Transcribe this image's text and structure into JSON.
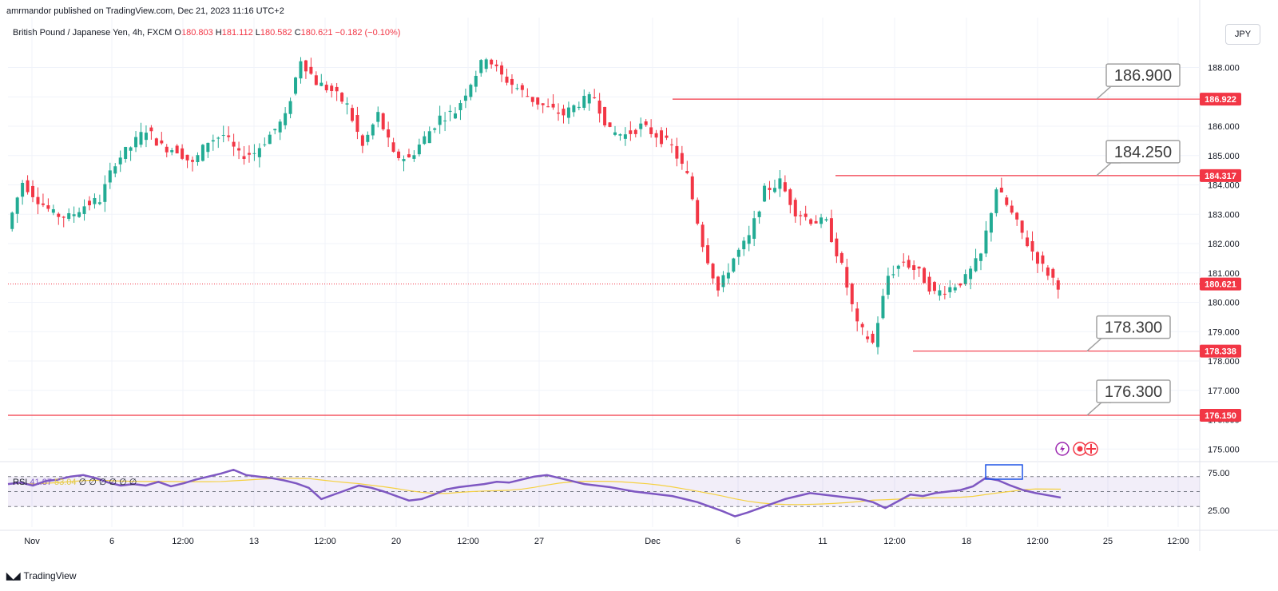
{
  "header": {
    "publish_line": "amrmandor published on TradingView.com, Dec 21, 2023 11:16 UTC+2",
    "symbol": "British Pound / Japanese Yen, 4h, FXCM",
    "open_label": "O",
    "open": "180.803",
    "high_label": "H",
    "high": "181.112",
    "low_label": "L",
    "low": "180.582",
    "close_label": "C",
    "close": "180.621",
    "change": "−0.182 (−0.10%)",
    "currency": "JPY"
  },
  "rsi_legend": {
    "name": "RSI",
    "value": "41.87",
    "ma": "53.04",
    "zeros": "∅ ∅ ∅ ∅ ∅ ∅"
  },
  "brand": {
    "name": "TradingView"
  },
  "colors": {
    "up": "#22ab94",
    "down": "#f23645",
    "rsi": "#7e57c2",
    "rsi_ma": "#f5d142",
    "line": "#f23645"
  },
  "chart_data": {
    "type": "candlestick",
    "price_axis": {
      "ticks": [
        "188.000",
        "187.000",
        "186.000",
        "185.000",
        "184.000",
        "183.000",
        "182.000",
        "181.000",
        "180.000",
        "179.000",
        "178.000",
        "177.000",
        "176.000",
        "175.000"
      ],
      "range": [
        174.6,
        188.9
      ]
    },
    "time_axis": {
      "labels": [
        "Nov",
        "6",
        "12:00",
        "13",
        "12:00",
        "20",
        "12:00",
        "27",
        "Dec",
        "6",
        "11",
        "12:00",
        "18",
        "12:00",
        "25",
        "12:00"
      ]
    },
    "horizontal_lines": [
      {
        "price": 186.922,
        "tag": "186.922",
        "annotation": "186.900"
      },
      {
        "price": 184.317,
        "tag": "184.317",
        "annotation": "184.250"
      },
      {
        "price": 178.338,
        "tag": "178.338",
        "annotation": "178.300"
      },
      {
        "price": 176.15,
        "tag": "176.150",
        "annotation": "176.300"
      }
    ],
    "last_price": {
      "price": 180.621,
      "tag": "180.621"
    },
    "close_path": [
      182.5,
      184.1,
      183.5,
      183.0,
      182.9,
      183.3,
      183.5,
      184.8,
      185.3,
      185.9,
      185.3,
      185.2,
      184.7,
      185.5,
      185.7,
      185.0,
      185.1,
      185.7,
      186.3,
      188.3,
      187.5,
      187.2,
      186.7,
      185.3,
      186.4,
      185.0,
      184.9,
      185.6,
      186.3,
      186.5,
      187.5,
      188.4,
      187.7,
      187.3,
      186.9,
      186.6,
      186.4,
      186.8,
      187.0,
      185.8,
      185.7,
      186.0,
      185.7,
      185.3,
      184.3,
      182.0,
      180.4,
      181.5,
      182.2,
      183.8,
      184.1,
      183.1,
      182.8,
      182.7,
      181.2,
      179.2,
      178.6,
      180.9,
      181.4,
      181.0,
      180.3,
      180.5,
      180.8,
      181.6,
      183.9,
      183.0,
      182.0,
      181.2,
      180.6
    ],
    "rsi": {
      "levels": [
        "75.00",
        "25.00"
      ],
      "overbought": 70,
      "middle": 50,
      "oversold": 30,
      "values": [
        60,
        62,
        58,
        64,
        66,
        70,
        72,
        68,
        62,
        58,
        60,
        58,
        63,
        57,
        61,
        66,
        70,
        74,
        79,
        72,
        70,
        68,
        65,
        61,
        55,
        40,
        46,
        52,
        58,
        55,
        50,
        44,
        38,
        40,
        46,
        53,
        56,
        58,
        60,
        63,
        62,
        66,
        70,
        72,
        68,
        64,
        60,
        58,
        56,
        53,
        50,
        48,
        46,
        44,
        40,
        36,
        30,
        24,
        17,
        22,
        28,
        34,
        40,
        44,
        48,
        46,
        44,
        42,
        40,
        36,
        28,
        37,
        46,
        44,
        48,
        50,
        52,
        57,
        68,
        65,
        58,
        52,
        48,
        45,
        42
      ]
    },
    "icons": [
      "lightning-icon",
      "record-icon",
      "uk-flag-icon"
    ]
  }
}
